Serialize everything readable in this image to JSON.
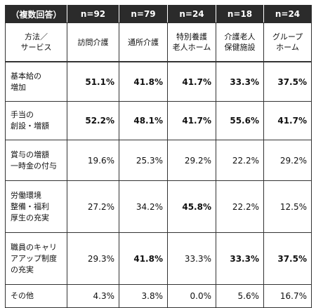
{
  "table": {
    "header_label": "（複数回答）",
    "sample_sizes": [
      "n=92",
      "n=79",
      "n=24",
      "n=18",
      "n=24"
    ],
    "corner_label": "方法／\nサービス",
    "services": [
      "訪問介護",
      "通所介護",
      "特別養護\n老人ホーム",
      "介護老人\n保健施設",
      "グループ\nホーム"
    ],
    "rows": [
      {
        "label": "基本給の\n増加",
        "values": [
          "51.1%",
          "41.8%",
          "41.7%",
          "33.3%",
          "37.5%"
        ],
        "bold": [
          true,
          true,
          true,
          true,
          true
        ]
      },
      {
        "label": "手当の\n創設・増額",
        "values": [
          "52.2%",
          "48.1%",
          "41.7%",
          "55.6%",
          "41.7%"
        ],
        "bold": [
          true,
          true,
          true,
          true,
          true
        ]
      },
      {
        "label": "賞与の増額\n一時金の付与",
        "values": [
          "19.6%",
          "25.3%",
          "29.2%",
          "22.2%",
          "29.2%"
        ],
        "bold": [
          false,
          false,
          false,
          false,
          false
        ]
      },
      {
        "label": "労働環境\n整備・福利\n厚生の充実",
        "values": [
          "27.2%",
          "34.2%",
          "45.8%",
          "22.2%",
          "12.5%"
        ],
        "bold": [
          false,
          false,
          true,
          false,
          false
        ]
      },
      {
        "label": "職員のキャリ\nアアップ制度\nの充実",
        "values": [
          "29.3%",
          "41.8%",
          "33.3%",
          "33.3%",
          "37.5%"
        ],
        "bold": [
          false,
          true,
          false,
          true,
          true
        ]
      },
      {
        "label": "その他",
        "values": [
          "4.3%",
          "3.8%",
          "0.0%",
          "5.6%",
          "16.7%"
        ],
        "bold": [
          false,
          false,
          false,
          false,
          false
        ]
      }
    ]
  }
}
